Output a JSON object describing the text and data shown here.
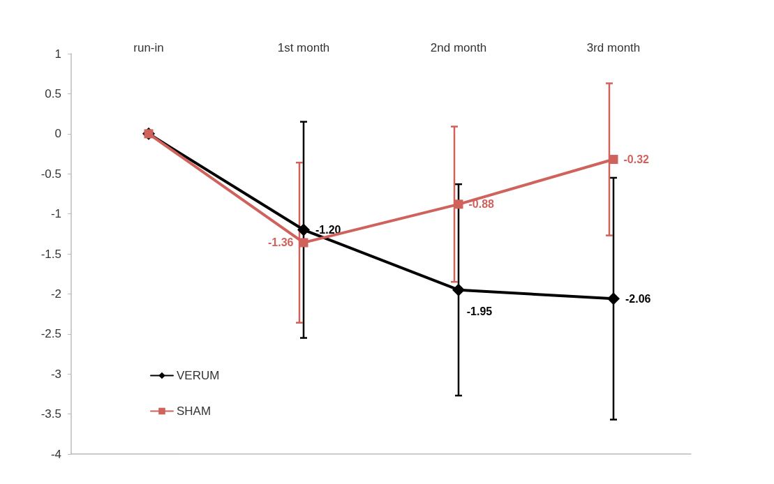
{
  "chart_data": {
    "type": "line",
    "categories": [
      "run-in",
      "1st month",
      "2nd month",
      "3rd month"
    ],
    "series": [
      {
        "name": "VERUM",
        "color": "#000000",
        "marker": "diamond",
        "values": [
          0,
          -1.2,
          -1.95,
          -2.06
        ],
        "errors": [
          null,
          1.35,
          1.32,
          1.51
        ],
        "value_labels": [
          null,
          "-1.20",
          "-1.95",
          "-2.06"
        ]
      },
      {
        "name": "SHAM",
        "color": "#d0625c",
        "marker": "square",
        "values": [
          0,
          -1.36,
          -0.88,
          -0.32
        ],
        "errors": [
          null,
          1.0,
          0.97,
          0.95
        ],
        "value_labels": [
          null,
          "-1.36",
          "-0.88",
          "-0.32"
        ]
      }
    ],
    "ylim": [
      -4,
      1
    ],
    "yticks": [
      -4,
      -3.5,
      -3,
      -2.5,
      -2,
      -1.5,
      -1,
      -0.5,
      0,
      0.5,
      1
    ],
    "grid": false,
    "legend": "bottom left",
    "line_style": "solid"
  }
}
